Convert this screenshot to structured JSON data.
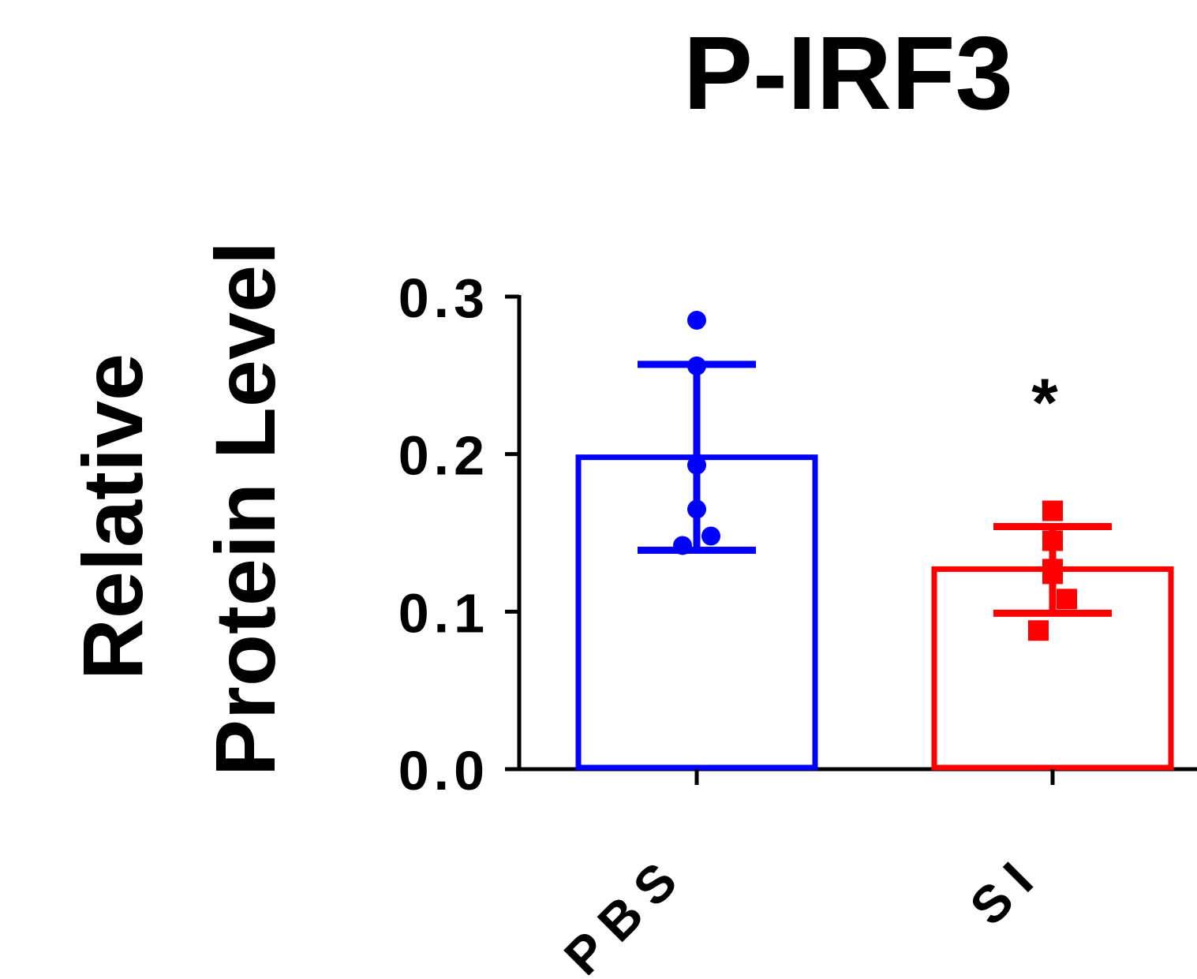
{
  "chart_data": {
    "type": "bar",
    "title": "P-IRF3",
    "ylabel_lines": [
      "Relative",
      "Protein Level"
    ],
    "xlabel": "",
    "categories": [
      "PBS",
      "SI"
    ],
    "ylim": [
      0,
      0.3
    ],
    "yticks": [
      0.0,
      0.1,
      0.2,
      0.3
    ],
    "ytick_labels": [
      "0.0",
      "0.1",
      "0.2",
      "0.3"
    ],
    "grid": false,
    "legend": "none",
    "series": [
      {
        "category": "PBS",
        "mean": 0.198,
        "error_upper": 0.257,
        "error_lower": 0.139,
        "points": [
          0.285,
          0.256,
          0.193,
          0.165,
          0.148,
          0.142
        ],
        "marker": "circle",
        "color": "#0000ff",
        "annotation": ""
      },
      {
        "category": "SI",
        "mean": 0.127,
        "error_upper": 0.154,
        "error_lower": 0.099,
        "points": [
          0.164,
          0.145,
          0.127,
          0.124,
          0.108,
          0.088
        ],
        "marker": "square",
        "color": "#ff0000",
        "annotation": "*"
      }
    ]
  }
}
